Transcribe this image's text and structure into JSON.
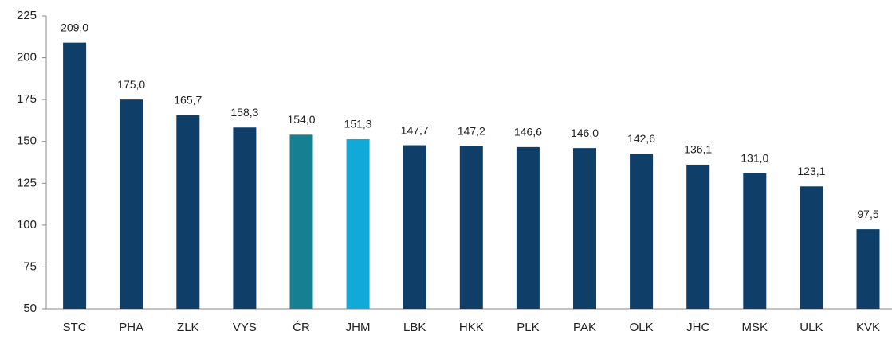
{
  "chart_data": {
    "type": "bar",
    "categories": [
      "STC",
      "PHA",
      "ZLK",
      "VYS",
      "ČR",
      "JHM",
      "LBK",
      "HKK",
      "PLK",
      "PAK",
      "OLK",
      "JHC",
      "MSK",
      "ULK",
      "KVK"
    ],
    "values": [
      209.0,
      175.0,
      165.7,
      158.3,
      154.0,
      151.3,
      147.7,
      147.2,
      146.6,
      146.0,
      142.6,
      136.1,
      131.0,
      123.1,
      97.5
    ],
    "value_labels": [
      "209,0",
      "175,0",
      "165,7",
      "158,3",
      "154,0",
      "151,3",
      "147,7",
      "147,2",
      "146,6",
      "146,0",
      "142,6",
      "136,1",
      "131,0",
      "123,1",
      "97,5"
    ],
    "colors": [
      "#0f3e69",
      "#0f3e69",
      "#0f3e69",
      "#0f3e69",
      "#177f92",
      "#11aad8",
      "#0f3e69",
      "#0f3e69",
      "#0f3e69",
      "#0f3e69",
      "#0f3e69",
      "#0f3e69",
      "#0f3e69",
      "#0f3e69",
      "#0f3e69"
    ],
    "ylim": [
      50,
      225
    ],
    "yticks": [
      50,
      75,
      100,
      125,
      150,
      175,
      200,
      225
    ],
    "grid": false
  }
}
